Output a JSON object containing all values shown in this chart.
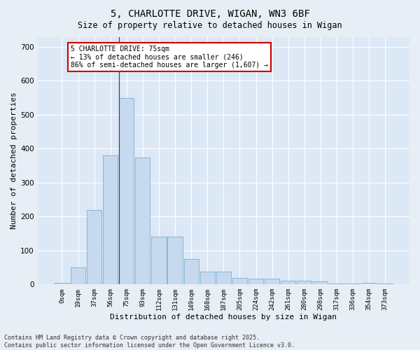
{
  "title1": "5, CHARLOTTE DRIVE, WIGAN, WN3 6BF",
  "title2": "Size of property relative to detached houses in Wigan",
  "xlabel": "Distribution of detached houses by size in Wigan",
  "ylabel": "Number of detached properties",
  "bar_labels": [
    "0sqm",
    "19sqm",
    "37sqm",
    "56sqm",
    "75sqm",
    "93sqm",
    "112sqm",
    "131sqm",
    "149sqm",
    "168sqm",
    "187sqm",
    "205sqm",
    "224sqm",
    "242sqm",
    "261sqm",
    "280sqm",
    "298sqm",
    "317sqm",
    "336sqm",
    "354sqm",
    "373sqm"
  ],
  "bar_values": [
    5,
    50,
    220,
    380,
    550,
    375,
    140,
    140,
    75,
    38,
    38,
    20,
    18,
    18,
    10,
    10,
    8,
    3,
    2,
    5,
    2
  ],
  "bar_color": "#c6d9ee",
  "bar_edge_color": "#7aafd4",
  "vline_index": 4,
  "vline_color": "#444444",
  "annotation_text": "5 CHARLOTTE DRIVE: 75sqm\n← 13% of detached houses are smaller (246)\n86% of semi-detached houses are larger (1,607) →",
  "annotation_box_color": "#ffffff",
  "annotation_box_edge": "#cc0000",
  "ylim": [
    0,
    730
  ],
  "yticks": [
    0,
    100,
    200,
    300,
    400,
    500,
    600,
    700
  ],
  "bg_color": "#dce8f5",
  "fig_bg_color": "#e8eef5",
  "footer1": "Contains HM Land Registry data © Crown copyright and database right 2025.",
  "footer2": "Contains public sector information licensed under the Open Government Licence v3.0."
}
